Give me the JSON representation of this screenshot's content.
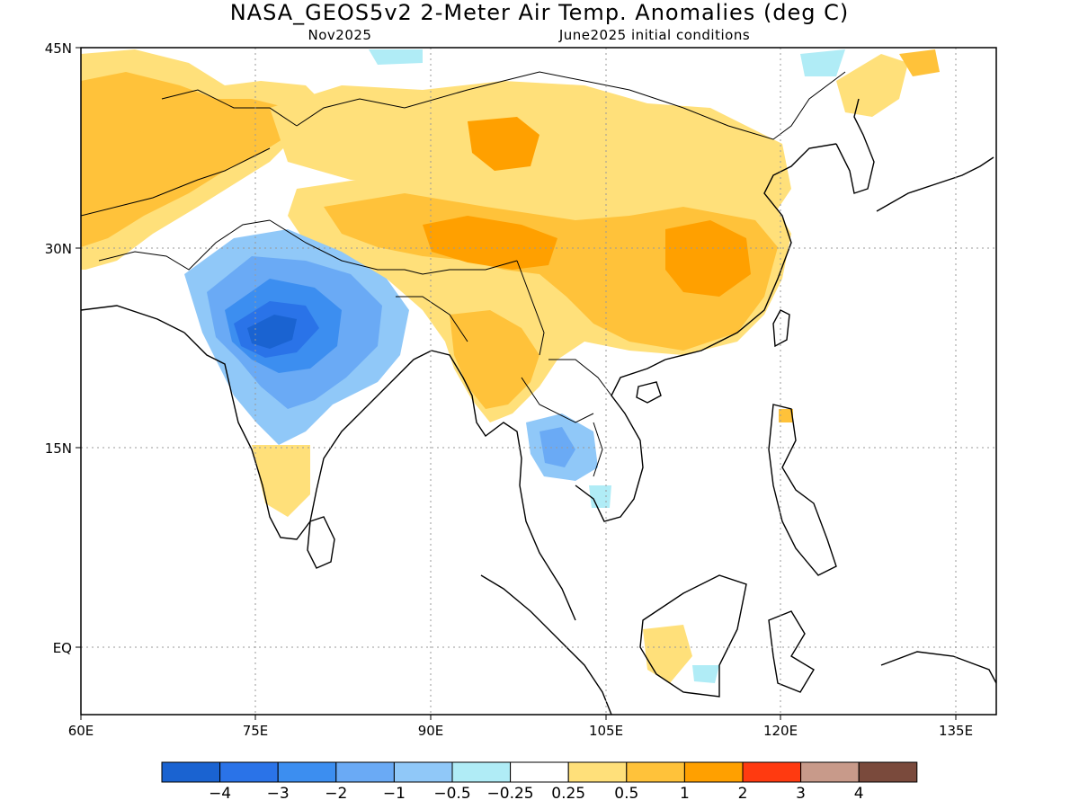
{
  "title": "NASA_GEOS5v2 2-Meter Air Temp. Anomalies (deg C)",
  "subtitle_left": "Nov2025",
  "subtitle_right": "June2025 initial conditions",
  "lat_ticks": [
    "45N",
    "30N",
    "15N",
    "EQ"
  ],
  "lon_ticks": [
    "60E",
    "75E",
    "90E",
    "105E",
    "120E",
    "135E"
  ],
  "colorbar": {
    "colors": [
      "#1a63d1",
      "#2a73e8",
      "#3c8ef0",
      "#6aaaf5",
      "#90c8f8",
      "#b0ecf6",
      "#ffffff",
      "#ffe07a",
      "#ffc23a",
      "#ffa000",
      "#ff3a10",
      "#c89a8a",
      "#7a4a3c"
    ],
    "labels": [
      "-4",
      "-3",
      "-2",
      "-1",
      "-0.5",
      "-0.25",
      "0.25",
      "0.5",
      "1",
      "2",
      "3",
      "4"
    ]
  },
  "colors": {
    "strong_warm": "#ffa000",
    "warm": "#ffc23a",
    "weak_warm": "#ffe07a",
    "weak_cool": "#b0ecf6",
    "cool": "#90c8f8",
    "cool2": "#6aaaf5",
    "cool3": "#3c8ef0",
    "cold": "#2a73e8",
    "coldest": "#1a63d1"
  }
}
